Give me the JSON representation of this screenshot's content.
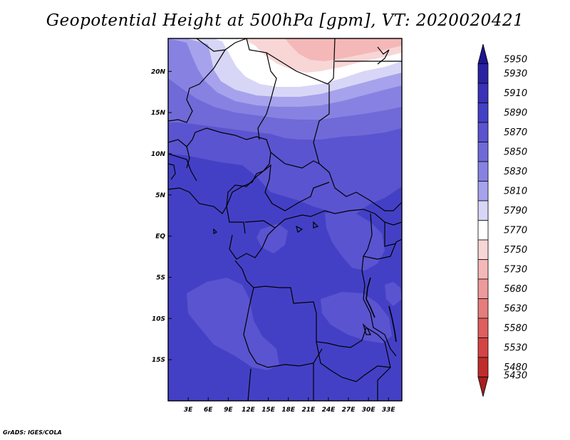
{
  "title": "Geopotential Height at 500hPa [gpm], VT: 2020020421",
  "credit": "GrADS: IGES/COLA",
  "map": {
    "lon_range": [
      0,
      35
    ],
    "lat_range": [
      -20,
      24
    ],
    "lon_ticks": [
      {
        "value": 3,
        "label": "3E"
      },
      {
        "value": 6,
        "label": "6E"
      },
      {
        "value": 9,
        "label": "9E"
      },
      {
        "value": 12,
        "label": "12E"
      },
      {
        "value": 15,
        "label": "15E"
      },
      {
        "value": 18,
        "label": "18E"
      },
      {
        "value": 21,
        "label": "21E"
      },
      {
        "value": 24,
        "label": "24E"
      },
      {
        "value": 27,
        "label": "27E"
      },
      {
        "value": 30,
        "label": "30E"
      },
      {
        "value": 33,
        "label": "33E"
      }
    ],
    "lat_ticks": [
      {
        "value": 20,
        "label": "20N"
      },
      {
        "value": 15,
        "label": "15N"
      },
      {
        "value": 10,
        "label": "10N"
      },
      {
        "value": 5,
        "label": "5N"
      },
      {
        "value": 0,
        "label": "EQ"
      },
      {
        "value": -5,
        "label": "5S"
      },
      {
        "value": -10,
        "label": "10S"
      },
      {
        "value": -15,
        "label": "15S"
      }
    ]
  },
  "colorbar": {
    "levels": [
      {
        "label": "5950",
        "color": "#1e1590"
      },
      {
        "label": "5930",
        "color": "#2b22a2"
      },
      {
        "label": "5910",
        "color": "#3a31b8"
      },
      {
        "label": "5890",
        "color": "#4440c6"
      },
      {
        "label": "5870",
        "color": "#5a54d0"
      },
      {
        "label": "5850",
        "color": "#706ad8"
      },
      {
        "label": "5830",
        "color": "#8782e2"
      },
      {
        "label": "5810",
        "color": "#a6a2ec"
      },
      {
        "label": "5790",
        "color": "#d8d6f6"
      },
      {
        "label": "5770",
        "color": "#ffffff"
      },
      {
        "label": "5750",
        "color": "#f9d6d6"
      },
      {
        "label": "5730",
        "color": "#f4b8b8"
      },
      {
        "label": "5680",
        "color": "#ed9a9a"
      },
      {
        "label": "5630",
        "color": "#e67c7c"
      },
      {
        "label": "5580",
        "color": "#df5e5e"
      },
      {
        "label": "5530",
        "color": "#d44444"
      },
      {
        "label": "5480",
        "color": "#c02c2c"
      },
      {
        "label": "5430",
        "color": "#a81e1e"
      }
    ]
  }
}
